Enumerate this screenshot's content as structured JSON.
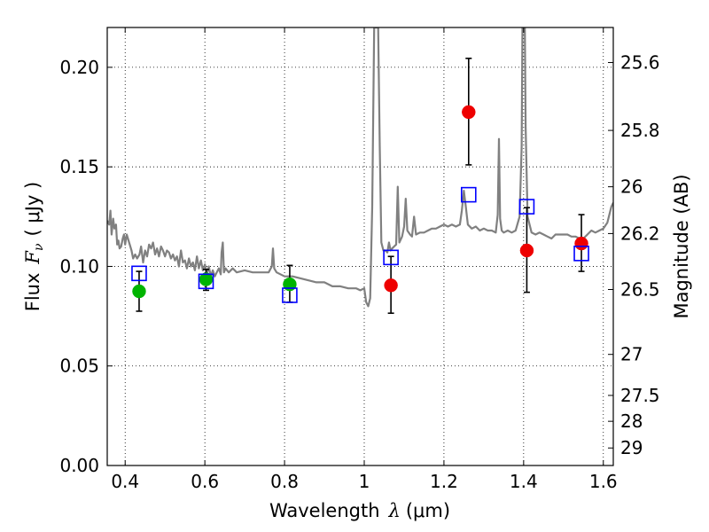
{
  "chart_data": {
    "type": "scatter",
    "xlabel_prefix": "Wavelength",
    "xlabel_symbol": "λ",
    "xlabel_units": "(μm)",
    "ylabel_prefix": "Flux",
    "ylabel_symbol": "F",
    "ylabel_subscript": "ν",
    "ylabel_units": "( μJy )",
    "y2label": "Magnitude (AB)",
    "xlim": [
      0.355,
      1.625
    ],
    "ylim": [
      0.0,
      0.22
    ],
    "grid": true,
    "x_ticks": [
      0.4,
      0.6,
      0.8,
      1.0,
      1.2,
      1.4,
      1.6
    ],
    "x_tick_labels": [
      "0.4",
      "0.6",
      "0.8",
      "1",
      "1.2",
      "1.4",
      "1.6"
    ],
    "y_ticks": [
      0.0,
      0.05,
      0.1,
      0.15,
      0.2
    ],
    "y_tick_labels": [
      "0.00",
      "0.05",
      "0.10",
      "0.15",
      "0.20"
    ],
    "y2_ticks": [
      {
        "label": "25.6",
        "flux": 0.2024
      },
      {
        "label": "25.8",
        "flux": 0.1683
      },
      {
        "label": "26",
        "flux": 0.14
      },
      {
        "label": "26.2",
        "flux": 0.1165
      },
      {
        "label": "26.5",
        "flux": 0.0884
      },
      {
        "label": "27",
        "flux": 0.0558
      },
      {
        "label": "27.5",
        "flux": 0.0352
      },
      {
        "label": "28",
        "flux": 0.0222
      },
      {
        "label": "29",
        "flux": 0.0088
      }
    ],
    "series": [
      {
        "kind": "line",
        "color": "#808080",
        "points": [
          [
            0.355,
            0.123
          ],
          [
            0.36,
            0.121
          ],
          [
            0.363,
            0.128
          ],
          [
            0.366,
            0.116
          ],
          [
            0.37,
            0.124
          ],
          [
            0.373,
            0.119
          ],
          [
            0.377,
            0.121
          ],
          [
            0.38,
            0.111
          ],
          [
            0.383,
            0.113
          ],
          [
            0.386,
            0.109
          ],
          [
            0.39,
            0.11
          ],
          [
            0.394,
            0.114
          ],
          [
            0.397,
            0.116
          ],
          [
            0.4,
            0.111
          ],
          [
            0.404,
            0.116
          ],
          [
            0.41,
            0.112
          ],
          [
            0.416,
            0.108
          ],
          [
            0.42,
            0.104
          ],
          [
            0.425,
            0.106
          ],
          [
            0.43,
            0.104
          ],
          [
            0.436,
            0.106
          ],
          [
            0.44,
            0.11
          ],
          [
            0.445,
            0.102
          ],
          [
            0.45,
            0.108
          ],
          [
            0.455,
            0.105
          ],
          [
            0.46,
            0.111
          ],
          [
            0.465,
            0.109
          ],
          [
            0.47,
            0.112
          ],
          [
            0.475,
            0.106
          ],
          [
            0.48,
            0.109
          ],
          [
            0.485,
            0.105
          ],
          [
            0.49,
            0.11
          ],
          [
            0.495,
            0.108
          ],
          [
            0.5,
            0.105
          ],
          [
            0.505,
            0.108
          ],
          [
            0.51,
            0.107
          ],
          [
            0.515,
            0.104
          ],
          [
            0.52,
            0.106
          ],
          [
            0.525,
            0.103
          ],
          [
            0.53,
            0.105
          ],
          [
            0.535,
            0.1
          ],
          [
            0.54,
            0.108
          ],
          [
            0.545,
            0.102
          ],
          [
            0.55,
            0.103
          ],
          [
            0.555,
            0.099
          ],
          [
            0.56,
            0.104
          ],
          [
            0.565,
            0.1
          ],
          [
            0.57,
            0.102
          ],
          [
            0.575,
            0.098
          ],
          [
            0.58,
            0.105
          ],
          [
            0.585,
            0.099
          ],
          [
            0.59,
            0.103
          ],
          [
            0.595,
            0.098
          ],
          [
            0.6,
            0.101
          ],
          [
            0.605,
            0.096
          ],
          [
            0.61,
            0.1
          ],
          [
            0.615,
            0.095
          ],
          [
            0.62,
            0.098
          ],
          [
            0.625,
            0.095
          ],
          [
            0.63,
            0.097
          ],
          [
            0.635,
            0.099
          ],
          [
            0.64,
            0.096
          ],
          [
            0.642,
            0.107
          ],
          [
            0.645,
            0.112
          ],
          [
            0.648,
            0.097
          ],
          [
            0.652,
            0.099
          ],
          [
            0.66,
            0.097
          ],
          [
            0.67,
            0.099
          ],
          [
            0.68,
            0.097
          ],
          [
            0.7,
            0.098
          ],
          [
            0.72,
            0.097
          ],
          [
            0.74,
            0.097
          ],
          [
            0.76,
            0.097
          ],
          [
            0.768,
            0.1
          ],
          [
            0.771,
            0.109
          ],
          [
            0.774,
            0.099
          ],
          [
            0.78,
            0.097
          ],
          [
            0.8,
            0.095
          ],
          [
            0.82,
            0.095
          ],
          [
            0.84,
            0.094
          ],
          [
            0.86,
            0.093
          ],
          [
            0.88,
            0.092
          ],
          [
            0.9,
            0.092
          ],
          [
            0.92,
            0.09
          ],
          [
            0.94,
            0.09
          ],
          [
            0.96,
            0.089
          ],
          [
            0.98,
            0.089
          ],
          [
            0.99,
            0.088
          ],
          [
            1.0,
            0.089
          ],
          [
            1.005,
            0.082
          ],
          [
            1.01,
            0.08
          ],
          [
            1.015,
            0.084
          ],
          [
            1.02,
            0.13
          ],
          [
            1.025,
            0.22
          ],
          [
            1.035,
            0.22
          ],
          [
            1.039,
            0.16
          ],
          [
            1.043,
            0.112
          ],
          [
            1.048,
            0.108
          ],
          [
            1.053,
            0.108
          ],
          [
            1.058,
            0.107
          ],
          [
            1.062,
            0.112
          ],
          [
            1.066,
            0.108
          ],
          [
            1.07,
            0.109
          ],
          [
            1.075,
            0.11
          ],
          [
            1.08,
            0.111
          ],
          [
            1.084,
            0.14
          ],
          [
            1.088,
            0.112
          ],
          [
            1.095,
            0.115
          ],
          [
            1.1,
            0.12
          ],
          [
            1.104,
            0.134
          ],
          [
            1.108,
            0.118
          ],
          [
            1.115,
            0.116
          ],
          [
            1.12,
            0.115
          ],
          [
            1.125,
            0.125
          ],
          [
            1.13,
            0.116
          ],
          [
            1.14,
            0.117
          ],
          [
            1.15,
            0.117
          ],
          [
            1.16,
            0.118
          ],
          [
            1.17,
            0.119
          ],
          [
            1.18,
            0.119
          ],
          [
            1.19,
            0.12
          ],
          [
            1.2,
            0.121
          ],
          [
            1.21,
            0.12
          ],
          [
            1.22,
            0.121
          ],
          [
            1.23,
            0.12
          ],
          [
            1.24,
            0.121
          ],
          [
            1.245,
            0.128
          ],
          [
            1.25,
            0.138
          ],
          [
            1.255,
            0.13
          ],
          [
            1.26,
            0.121
          ],
          [
            1.27,
            0.119
          ],
          [
            1.28,
            0.12
          ],
          [
            1.29,
            0.118
          ],
          [
            1.3,
            0.119
          ],
          [
            1.31,
            0.118
          ],
          [
            1.32,
            0.118
          ],
          [
            1.33,
            0.117
          ],
          [
            1.335,
            0.126
          ],
          [
            1.338,
            0.164
          ],
          [
            1.341,
            0.124
          ],
          [
            1.345,
            0.118
          ],
          [
            1.35,
            0.117
          ],
          [
            1.36,
            0.118
          ],
          [
            1.37,
            0.117
          ],
          [
            1.38,
            0.118
          ],
          [
            1.39,
            0.125
          ],
          [
            1.395,
            0.16
          ],
          [
            1.397,
            0.22
          ],
          [
            1.403,
            0.22
          ],
          [
            1.405,
            0.17
          ],
          [
            1.41,
            0.125
          ],
          [
            1.42,
            0.117
          ],
          [
            1.43,
            0.116
          ],
          [
            1.44,
            0.117
          ],
          [
            1.45,
            0.116
          ],
          [
            1.46,
            0.115
          ],
          [
            1.47,
            0.114
          ],
          [
            1.48,
            0.116
          ],
          [
            1.49,
            0.116
          ],
          [
            1.5,
            0.116
          ],
          [
            1.51,
            0.116
          ],
          [
            1.52,
            0.115
          ],
          [
            1.53,
            0.115
          ],
          [
            1.54,
            0.114
          ],
          [
            1.55,
            0.114
          ],
          [
            1.56,
            0.116
          ],
          [
            1.57,
            0.118
          ],
          [
            1.58,
            0.117
          ],
          [
            1.59,
            0.118
          ],
          [
            1.6,
            0.119
          ],
          [
            1.61,
            0.122
          ],
          [
            1.62,
            0.13
          ],
          [
            1.625,
            0.132
          ]
        ]
      },
      {
        "kind": "points",
        "marker": "circle",
        "color": "#00b400",
        "points": [
          {
            "x": 0.435,
            "y": 0.0875,
            "yerr_low": 0.0775,
            "yerr_high": 0.0975
          },
          {
            "x": 0.603,
            "y": 0.0935,
            "yerr_low": 0.088,
            "yerr_high": 0.0985
          },
          {
            "x": 0.813,
            "y": 0.091,
            "yerr_low": 0.082,
            "yerr_high": 0.1005
          }
        ]
      },
      {
        "kind": "points",
        "marker": "circle",
        "color": "#ee0000",
        "points": [
          {
            "x": 1.067,
            "y": 0.0905,
            "yerr_low": 0.0765,
            "yerr_high": 0.105
          },
          {
            "x": 1.262,
            "y": 0.1775,
            "yerr_low": 0.151,
            "yerr_high": 0.2045
          },
          {
            "x": 1.408,
            "y": 0.108,
            "yerr_low": 0.087,
            "yerr_high": 0.1295
          },
          {
            "x": 1.545,
            "y": 0.1115,
            "yerr_low": 0.0975,
            "yerr_high": 0.126
          }
        ]
      },
      {
        "kind": "points",
        "marker": "square-open",
        "color": "#0000ff",
        "points": [
          {
            "x": 0.435,
            "y": 0.0965
          },
          {
            "x": 0.603,
            "y": 0.0925
          },
          {
            "x": 0.813,
            "y": 0.0855
          },
          {
            "x": 1.067,
            "y": 0.1045
          },
          {
            "x": 1.262,
            "y": 0.136
          },
          {
            "x": 1.408,
            "y": 0.13
          },
          {
            "x": 1.545,
            "y": 0.1065
          }
        ]
      }
    ]
  }
}
